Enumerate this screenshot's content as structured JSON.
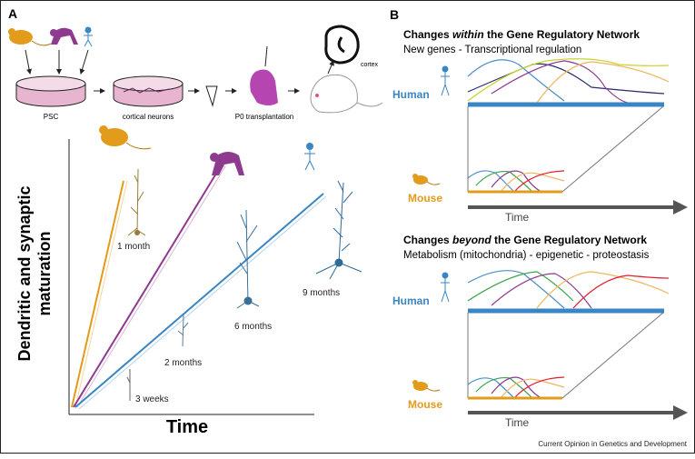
{
  "panel_a": {
    "label": "A",
    "workflow": {
      "step_psc": "PSC",
      "step_neurons": "cortical neurons",
      "step_transplant": "P0 transplantation",
      "step_cortex": "cortex"
    },
    "graph": {
      "ylabel_line1": "Dendritic and synaptic",
      "ylabel_line2": "maturation",
      "xlabel": "Time",
      "timepoints": {
        "weeks3": "3 weeks",
        "month1": "1 month",
        "months2": "2 months",
        "months6": "6 months",
        "months9": "9 months"
      }
    }
  },
  "panel_b": {
    "label": "B",
    "top": {
      "title_pre": "Changes ",
      "title_em": "within",
      "title_post": " the Gene Regulatory Network",
      "subtitle": "New genes - Transcriptional regulation",
      "human": "Human",
      "mouse": "Mouse",
      "time": "Time"
    },
    "bottom": {
      "title_pre": "Changes ",
      "title_em": "beyond",
      "title_post": " the Gene Regulatory Network",
      "subtitle": "Metabolism (mitochondria) - epigenetic - proteostasis",
      "human": "Human",
      "mouse": "Mouse",
      "time": "Time"
    }
  },
  "footer": "Current Opinion in Genetics and Development",
  "colors": {
    "mouse": "#e39b1c",
    "chimp": "#8e3a8e",
    "human": "#3a85c3",
    "arrow": "#555555"
  }
}
